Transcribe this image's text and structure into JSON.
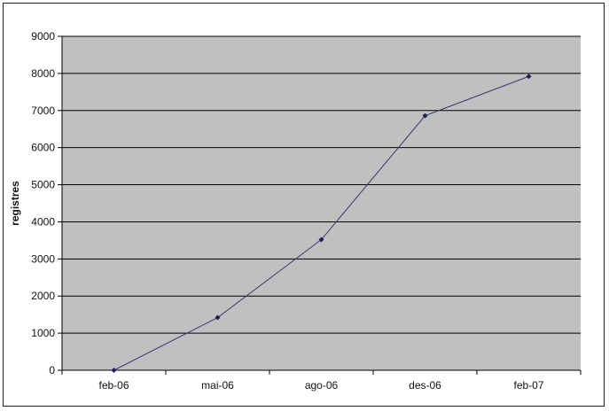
{
  "chart_data": {
    "type": "line",
    "title": "",
    "xlabel": "",
    "ylabel": "registres",
    "categories": [
      "feb-06",
      "mai-06",
      "ago-06",
      "des-06",
      "feb-07"
    ],
    "series": [
      {
        "values": [
          0,
          1420,
          3520,
          6860,
          7920
        ]
      }
    ],
    "ylim": [
      0,
      9000
    ],
    "yticks": [
      0,
      1000,
      2000,
      3000,
      4000,
      5000,
      6000,
      7000,
      8000,
      9000
    ],
    "grid": true,
    "legend": "none",
    "colors": {
      "plot_background": "#c0c0c0",
      "gridline": "#000000",
      "line": "#3a3a6e",
      "marker": "#1e1e5c"
    }
  }
}
